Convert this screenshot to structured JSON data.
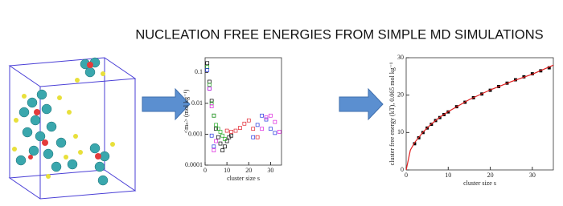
{
  "title": "NUCLEATION FREE ENERGIES FROM SIMPLE MD SIMULATIONS",
  "chart_data": [
    {
      "type": "scatter",
      "y_label": "<mₙ> (mol kg⁻¹)",
      "x_label": "cluster size s",
      "yscale": "log",
      "xlim": [
        0,
        35
      ],
      "ylim": [
        0.0001,
        0.3
      ],
      "xticks": [
        0,
        10,
        20,
        30
      ],
      "yticks": [
        0.0001,
        0.001,
        0.01,
        0.1
      ],
      "series": [
        {
          "color": "#000000",
          "marker": "square",
          "x": [
            1,
            2,
            3,
            4,
            5,
            6,
            7,
            8,
            9,
            10,
            11,
            12
          ],
          "values": [
            0.2,
            0.05,
            0.012,
            0.004,
            0.0015,
            0.0008,
            0.0005,
            0.0003,
            0.0004,
            0.0006,
            0.0008,
            0.0009
          ]
        },
        {
          "color": "#e0202a",
          "marker": "square",
          "x": [
            10,
            12,
            14,
            16,
            18,
            20,
            22,
            24
          ],
          "values": [
            0.0013,
            0.0012,
            0.0013,
            0.0016,
            0.0022,
            0.0028,
            0.0015,
            0.0008
          ]
        },
        {
          "color": "#22aa22",
          "marker": "square",
          "x": [
            1,
            2,
            3,
            4,
            5,
            6,
            7,
            8,
            9
          ],
          "values": [
            0.15,
            0.04,
            0.01,
            0.004,
            0.002,
            0.0015,
            0.0012,
            0.0009,
            0.0007
          ]
        },
        {
          "color": "#2233dd",
          "marker": "square",
          "x": [
            1,
            2,
            3,
            4,
            22,
            24,
            26,
            28,
            30,
            32
          ],
          "values": [
            0.12,
            0.03,
            0.0009,
            0.0004,
            0.0008,
            0.002,
            0.004,
            0.003,
            0.0015,
            0.0011
          ]
        },
        {
          "color": "#dd22dd",
          "marker": "square",
          "x": [
            2,
            3,
            4,
            5,
            26,
            28,
            30,
            32,
            34
          ],
          "values": [
            0.03,
            0.008,
            0.0003,
            0.0006,
            0.0015,
            0.0035,
            0.004,
            0.0025,
            0.0012
          ]
        }
      ]
    },
    {
      "type": "scatter",
      "y_label": "cluster free energy (kT), 0.065 mol kg⁻¹",
      "x_label": "cluster size s",
      "xlim": [
        0,
        35
      ],
      "ylim": [
        0,
        30
      ],
      "xticks": [
        0,
        10,
        20,
        30
      ],
      "yticks": [
        0,
        10,
        20,
        30
      ],
      "series": [
        {
          "color": "#000000",
          "marker": "filled",
          "x": [
            2,
            3,
            4,
            5,
            6,
            7,
            8,
            9,
            10,
            12,
            14,
            16,
            18,
            20,
            22,
            24,
            26,
            28,
            30,
            32,
            34
          ],
          "values": [
            7.0,
            8.6,
            10,
            11.2,
            12.2,
            13.2,
            14.0,
            14.8,
            15.5,
            16.9,
            18.1,
            19.3,
            20.3,
            21.3,
            22.3,
            23.2,
            24.1,
            24.9,
            25.7,
            26.5,
            27.3
          ]
        },
        {
          "color": "#e02020",
          "marker": "line",
          "x": [
            0,
            1,
            2,
            4,
            6,
            8,
            10,
            15,
            20,
            25,
            30,
            35
          ],
          "values": [
            0,
            5.3,
            7.3,
            10.1,
            12.3,
            14.1,
            15.6,
            18.8,
            21.4,
            23.6,
            25.6,
            28.0
          ]
        }
      ]
    }
  ]
}
